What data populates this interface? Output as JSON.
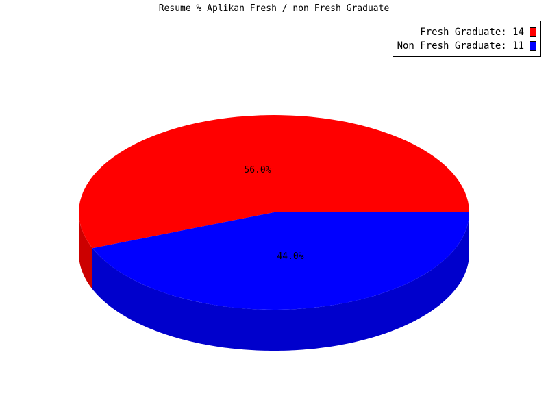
{
  "chart_data": {
    "type": "pie",
    "title": "Resume % Aplikan Fresh / non Fresh Graduate",
    "slices": [
      {
        "name": "Fresh Graduate",
        "value": 14,
        "percent_label": "56.0%",
        "color": "#ff0000",
        "side_color": "#cc0000",
        "legend_label": "Fresh Graduate: 14"
      },
      {
        "name": "Non Fresh Graduate",
        "value": 11,
        "percent_label": "44.0%",
        "color": "#0000ff",
        "side_color": "#0000cc",
        "legend_label": "Non Fresh Graduate: 11"
      }
    ],
    "legend_position": "top-right",
    "style": "3d"
  }
}
